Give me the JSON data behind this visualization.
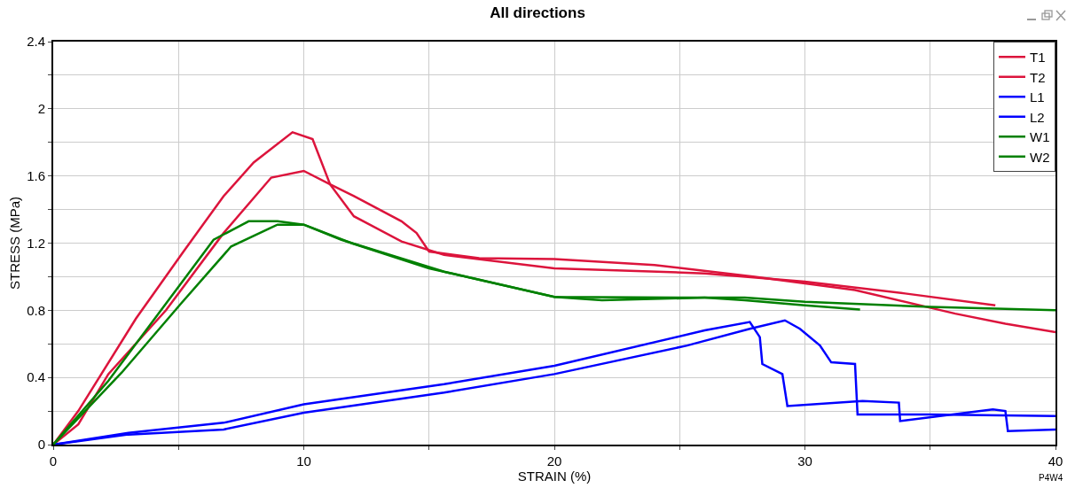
{
  "chart_data": {
    "type": "line",
    "title": "All directions",
    "xlabel": "STRAIN (%)",
    "ylabel": "STRESS (MPa)",
    "annotations": [
      "P4W4"
    ],
    "xlim": [
      0,
      40
    ],
    "ylim": [
      0,
      2.4
    ],
    "xticks": [
      0,
      {
        "value": 5,
        "label": null
      },
      10,
      {
        "value": 15,
        "label": null
      },
      20,
      {
        "value": 25,
        "label": null
      },
      30,
      {
        "value": 35,
        "label": null
      },
      40
    ],
    "yticks": [
      0,
      {
        "value": 0.2,
        "label": null
      },
      0.4,
      {
        "value": 0.6,
        "label": null
      },
      0.8,
      {
        "value": 1.0,
        "label": null
      },
      1.2,
      {
        "value": 1.4,
        "label": null
      },
      1.6,
      {
        "value": 1.8,
        "label": null
      },
      2,
      {
        "value": 2.2,
        "label": null
      },
      2.4
    ],
    "grid": true,
    "legend": "top right",
    "marker": "none",
    "line_style": "solid",
    "series": [
      {
        "name": "T1",
        "color": "#dc143c",
        "x": [
          0,
          1,
          3.3,
          5.2,
          6.8,
          8,
          9.55,
          10.35,
          11.05,
          12,
          13.9,
          15.6,
          20,
          26,
          30,
          34,
          37.6
        ],
        "values": [
          0,
          0.2,
          0.75,
          1.15,
          1.48,
          1.68,
          1.86,
          1.82,
          1.55,
          1.36,
          1.21,
          1.13,
          1.05,
          1.02,
          0.97,
          0.9,
          0.83
        ]
      },
      {
        "name": "T2",
        "color": "#dc143c",
        "x": [
          0,
          1,
          2.2,
          4.5,
          6.8,
          8.7,
          10,
          11.05,
          12,
          13.9,
          14.5,
          15,
          17,
          20,
          24,
          28,
          32,
          36,
          38,
          40
        ],
        "values": [
          0,
          0.12,
          0.42,
          0.8,
          1.26,
          1.59,
          1.63,
          1.55,
          1.48,
          1.33,
          1.26,
          1.15,
          1.11,
          1.105,
          1.07,
          1.0,
          0.92,
          0.78,
          0.72,
          0.67
        ]
      },
      {
        "name": "L1",
        "color": "#0000ff",
        "x": [
          0,
          3,
          6.8,
          10,
          15.6,
          20,
          26,
          27.8,
          28.2,
          28.3,
          29.1,
          29.3,
          32.3,
          33.75,
          33.8,
          37.5,
          38,
          38.1,
          40
        ],
        "values": [
          0,
          0.07,
          0.13,
          0.24,
          0.36,
          0.47,
          0.68,
          0.73,
          0.64,
          0.48,
          0.42,
          0.23,
          0.26,
          0.25,
          0.14,
          0.21,
          0.2,
          0.08,
          0.09
        ]
      },
      {
        "name": "L2",
        "color": "#0000ff",
        "x": [
          0,
          3,
          6.8,
          10,
          15.6,
          20,
          25.3,
          27.8,
          29.2,
          29.8,
          30.6,
          31.05,
          32,
          32.1,
          35,
          40
        ],
        "values": [
          0,
          0.06,
          0.09,
          0.19,
          0.31,
          0.42,
          0.59,
          0.69,
          0.74,
          0.69,
          0.59,
          0.49,
          0.48,
          0.18,
          0.18,
          0.17
        ]
      },
      {
        "name": "W1",
        "color": "#008000",
        "x": [
          0,
          2.2,
          4.5,
          6.4,
          7.8,
          8.95,
          10,
          11.5,
          15.6,
          20,
          21.9,
          26,
          27.6,
          30,
          35,
          40
        ],
        "values": [
          0,
          0.38,
          0.84,
          1.22,
          1.33,
          1.33,
          1.31,
          1.22,
          1.03,
          0.88,
          0.86,
          0.875,
          0.875,
          0.85,
          0.82,
          0.8
        ]
      },
      {
        "name": "W2",
        "color": "#008000",
        "x": [
          0,
          2.74,
          5.1,
          7.1,
          8.95,
          10,
          11.9,
          15,
          20,
          26,
          27.6,
          30,
          32.2
        ],
        "values": [
          0,
          0.43,
          0.84,
          1.18,
          1.31,
          1.31,
          1.2,
          1.05,
          0.88,
          0.875,
          0.86,
          0.83,
          0.805
        ]
      }
    ]
  }
}
